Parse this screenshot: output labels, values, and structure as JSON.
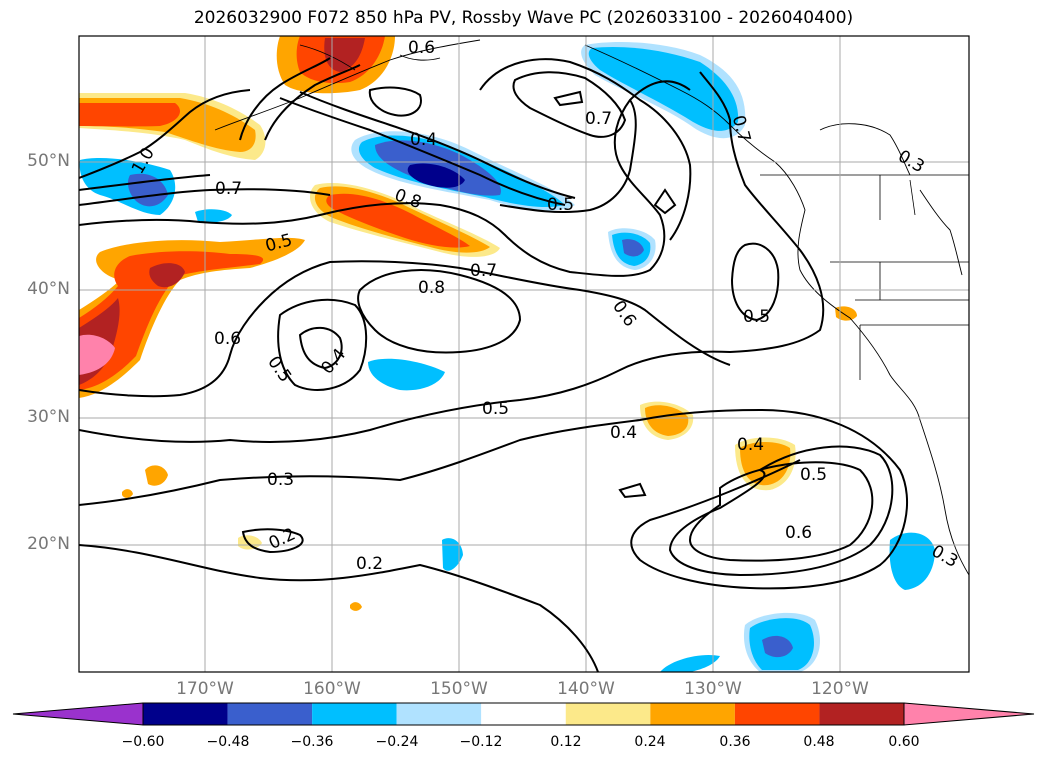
{
  "title": "2026032900 F072 850 hPa PV, Rossby Wave PC (2026033100 - 2026040400)",
  "axes": {
    "lat_labels": [
      "50°N",
      "40°N",
      "30°N",
      "20°N"
    ],
    "lon_labels": [
      "170°W",
      "160°W",
      "150°W",
      "140°W",
      "130°W",
      "120°W"
    ]
  },
  "colorbar": {
    "ticks": [
      "−0.60",
      "−0.48",
      "−0.36",
      "−0.24",
      "−0.12",
      "0.12",
      "0.24",
      "0.36",
      "0.48",
      "0.60"
    ],
    "colors": [
      "#9a32cd",
      "#00008b",
      "#3a5fcd",
      "#00bfff",
      "#b0e2ff",
      "#ffffff",
      "#fce98a",
      "#ffa500",
      "#ff4500",
      "#b22222",
      "#ff82ab"
    ]
  },
  "contour_labels": [
    "0.6",
    "0.4",
    "0.7",
    "0.7",
    "1.0",
    "0.7",
    "0.8",
    "0.5",
    "0.5",
    "0.7",
    "0.8",
    "0.6",
    "0.5",
    "0.4",
    "0.6",
    "0.5",
    "0.5",
    "0.4",
    "0.4",
    "0.5",
    "0.3",
    "0.6",
    "0.2",
    "0.2",
    "0.3",
    "0.3"
  ]
}
